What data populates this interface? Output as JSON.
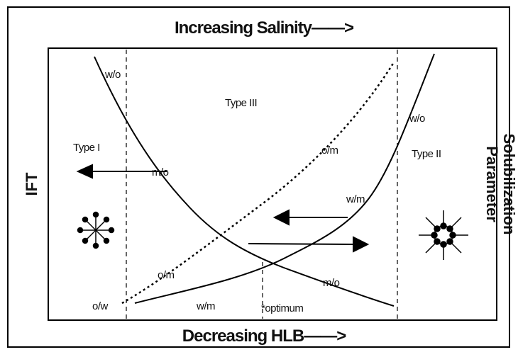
{
  "header": {
    "top": "Increasing Salinity——>",
    "bottom": "Decreasing HLB——>"
  },
  "axes": {
    "left": "IFT",
    "right": [
      "Solubilization",
      "Parameter"
    ]
  },
  "labels": [
    "w/o",
    "Type III",
    "Type I",
    "m/o",
    "o/m",
    "w/o",
    "Type II",
    "w/m",
    "o/m",
    "o/w",
    "w/m",
    "*optimum",
    "m/o"
  ]
}
